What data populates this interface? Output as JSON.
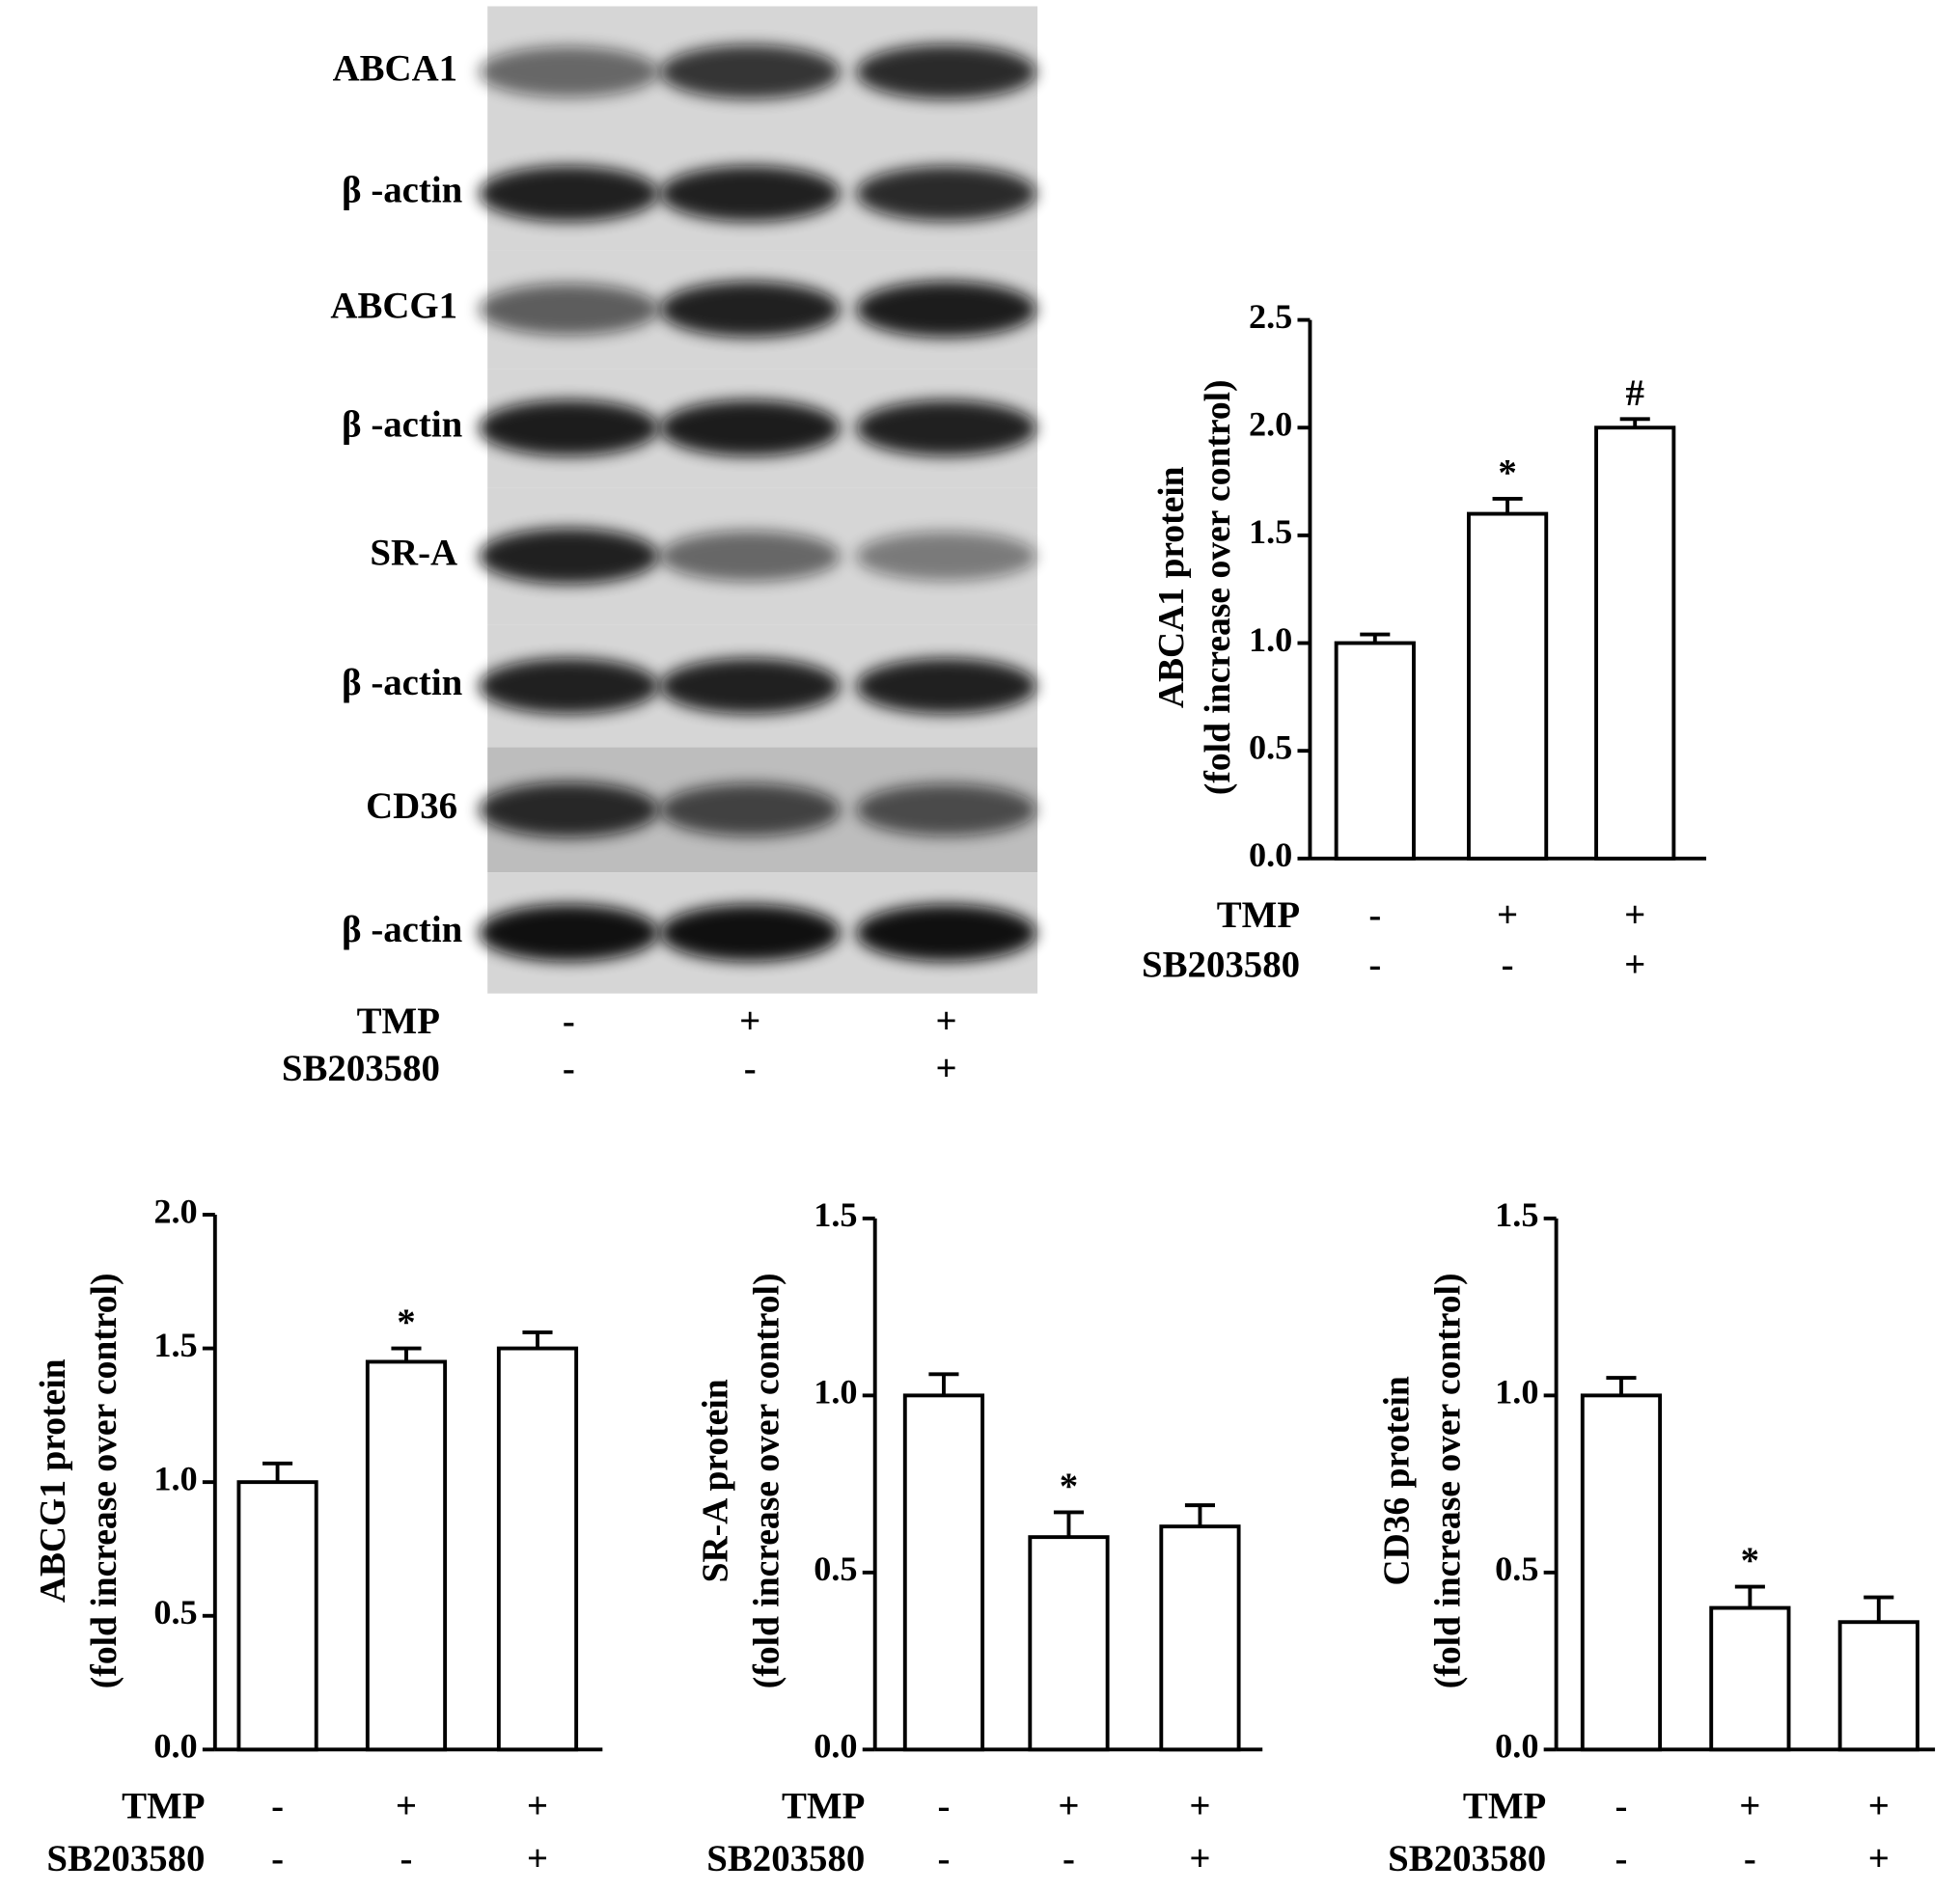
{
  "blot": {
    "labels": [
      "ABCA1",
      "β -actin",
      "ABCG1",
      "β -actin",
      "SR-A",
      "β -actin",
      "CD36",
      "β -actin"
    ],
    "conditions": [
      {
        "name": "TMP",
        "values": [
          "-",
          "+",
          "+"
        ]
      },
      {
        "name": "SB203580",
        "values": [
          "-",
          "-",
          "+"
        ]
      }
    ]
  },
  "chart_data": [
    {
      "type": "bar",
      "ylabel": [
        "ABCA1 protein",
        "(fold increase over control)"
      ],
      "values": [
        1.0,
        1.6,
        2.0
      ],
      "errors": [
        0.04,
        0.07,
        0.04
      ],
      "markers": [
        null,
        "*",
        "#"
      ],
      "color": "#ffffff",
      "ylim": [
        0,
        2.5
      ],
      "yticks": [
        {
          "value": 0,
          "label": "0.0"
        },
        0.5,
        {
          "value": 1,
          "label": "1.0"
        },
        1.5,
        {
          "value": 2,
          "label": "2.0"
        },
        2.5
      ],
      "conditions": [
        {
          "name": "TMP",
          "values": [
            "-",
            "+",
            "+"
          ]
        },
        {
          "name": "SB203580",
          "values": [
            "-",
            "-",
            "+"
          ]
        }
      ]
    },
    {
      "type": "bar",
      "ylabel": [
        "ABCG1 protein",
        "(fold increase over control)"
      ],
      "values": [
        1.0,
        1.45,
        1.5
      ],
      "errors": [
        0.07,
        0.05,
        0.06
      ],
      "markers": [
        null,
        "*",
        null
      ],
      "color": "#ffffff",
      "ylim": [
        0,
        2
      ],
      "yticks": [
        {
          "value": 0,
          "label": "0.0"
        },
        0.5,
        {
          "value": 1,
          "label": "1.0"
        },
        1.5,
        {
          "value": 2,
          "label": "2.0"
        }
      ],
      "conditions": [
        {
          "name": "TMP",
          "values": [
            "-",
            "+",
            "+"
          ]
        },
        {
          "name": "SB203580",
          "values": [
            "-",
            "-",
            "+"
          ]
        }
      ]
    },
    {
      "type": "bar",
      "ylabel": [
        "SR-A protein",
        "(fold increase over control)"
      ],
      "values": [
        1.0,
        0.6,
        0.63
      ],
      "errors": [
        0.06,
        0.07,
        0.06
      ],
      "markers": [
        null,
        "*",
        null
      ],
      "color": "#ffffff",
      "ylim": [
        0,
        1.5
      ],
      "yticks": [
        {
          "value": 0,
          "label": "0.0"
        },
        0.5,
        {
          "value": 1,
          "label": "1.0"
        },
        1.5
      ],
      "conditions": [
        {
          "name": "TMP",
          "values": [
            "-",
            "+",
            "+"
          ]
        },
        {
          "name": "SB203580",
          "values": [
            "-",
            "-",
            "+"
          ]
        }
      ]
    },
    {
      "type": "bar",
      "ylabel": [
        "CD36 protein",
        "(fold increase over control)"
      ],
      "values": [
        1.0,
        0.4,
        0.36
      ],
      "errors": [
        0.05,
        0.06,
        0.07
      ],
      "markers": [
        null,
        "*",
        null
      ],
      "color": "#ffffff",
      "ylim": [
        0,
        1.5
      ],
      "yticks": [
        {
          "value": 0,
          "label": "0.0"
        },
        0.5,
        {
          "value": 1,
          "label": "1.0"
        },
        1.5
      ],
      "conditions": [
        {
          "name": "TMP",
          "values": [
            "-",
            "+",
            "+"
          ]
        },
        {
          "name": "SB203580",
          "values": [
            "-",
            "-",
            "+"
          ]
        }
      ]
    }
  ]
}
